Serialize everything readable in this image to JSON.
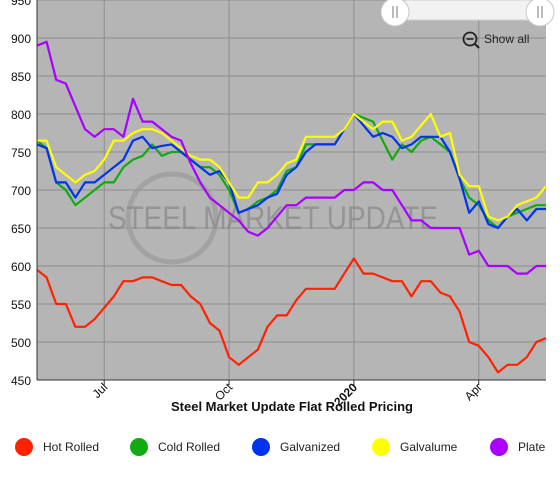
{
  "chart_data": {
    "type": "line",
    "title": "Steel Market Update Flat Rolled Pricing",
    "watermark": "STEEL MARKET UPDATE",
    "show_all_label": "Show all",
    "ylim": [
      450,
      950
    ],
    "y_ticks": [
      450,
      500,
      550,
      600,
      650,
      700,
      750,
      800,
      850,
      900,
      950
    ],
    "x_ticks": [
      {
        "label": "Jul",
        "week": 7,
        "bold": false
      },
      {
        "label": "Oct",
        "week": 20,
        "bold": false
      },
      {
        "label": "2020",
        "week": 33,
        "bold": true
      },
      {
        "label": "Apr",
        "week": 46,
        "bold": false
      }
    ],
    "grid": true,
    "legend_position": "bottom",
    "background_color": "#b5b5b5",
    "series": [
      {
        "name": "Hot Rolled",
        "color": "#ff2200",
        "values": [
          595,
          585,
          550,
          550,
          520,
          520,
          530,
          545,
          560,
          580,
          580,
          585,
          585,
          580,
          575,
          575,
          560,
          550,
          525,
          515,
          480,
          470,
          480,
          490,
          520,
          535,
          535,
          555,
          570,
          570,
          570,
          570,
          590,
          610,
          590,
          590,
          585,
          580,
          580,
          560,
          580,
          580,
          565,
          560,
          540,
          500,
          495,
          480,
          460,
          470,
          470,
          480,
          500,
          505
        ]
      },
      {
        "name": "Cold Rolled",
        "color": "#11aa11",
        "values": [
          765,
          755,
          710,
          700,
          680,
          690,
          700,
          710,
          710,
          730,
          740,
          745,
          760,
          745,
          750,
          750,
          740,
          730,
          730,
          720,
          700,
          670,
          675,
          685,
          690,
          700,
          725,
          730,
          760,
          760,
          760,
          760,
          780,
          800,
          795,
          790,
          765,
          740,
          760,
          750,
          765,
          770,
          760,
          750,
          715,
          690,
          680,
          660,
          650,
          665,
          670,
          675,
          680,
          680
        ]
      },
      {
        "name": "Galvanized",
        "color": "#0033ee",
        "values": [
          760,
          755,
          710,
          710,
          690,
          710,
          710,
          720,
          730,
          740,
          765,
          770,
          755,
          758,
          760,
          750,
          740,
          730,
          720,
          725,
          710,
          670,
          675,
          680,
          690,
          695,
          720,
          730,
          750,
          760,
          760,
          760,
          780,
          800,
          785,
          770,
          775,
          770,
          755,
          760,
          770,
          770,
          770,
          750,
          715,
          670,
          685,
          655,
          650,
          665,
          675,
          660,
          675,
          675
        ]
      },
      {
        "name": "Galvalume",
        "color": "#ffff00",
        "values": [
          765,
          765,
          730,
          720,
          710,
          720,
          725,
          740,
          765,
          765,
          775,
          780,
          780,
          775,
          765,
          755,
          745,
          740,
          740,
          730,
          710,
          690,
          690,
          710,
          710,
          720,
          735,
          740,
          770,
          770,
          770,
          770,
          780,
          800,
          790,
          780,
          790,
          790,
          765,
          770,
          785,
          800,
          770,
          775,
          720,
          705,
          705,
          665,
          660,
          665,
          680,
          685,
          690,
          705
        ]
      },
      {
        "name": "Plate",
        "color": "#aa00ff",
        "values": [
          890,
          895,
          845,
          840,
          810,
          780,
          770,
          780,
          780,
          770,
          820,
          790,
          790,
          780,
          770,
          765,
          735,
          710,
          690,
          680,
          670,
          660,
          645,
          640,
          650,
          665,
          680,
          680,
          690,
          690,
          690,
          690,
          700,
          700,
          710,
          710,
          700,
          700,
          680,
          660,
          660,
          650,
          650,
          650,
          650,
          615,
          620,
          600,
          600,
          600,
          590,
          590,
          600,
          600
        ]
      }
    ]
  }
}
